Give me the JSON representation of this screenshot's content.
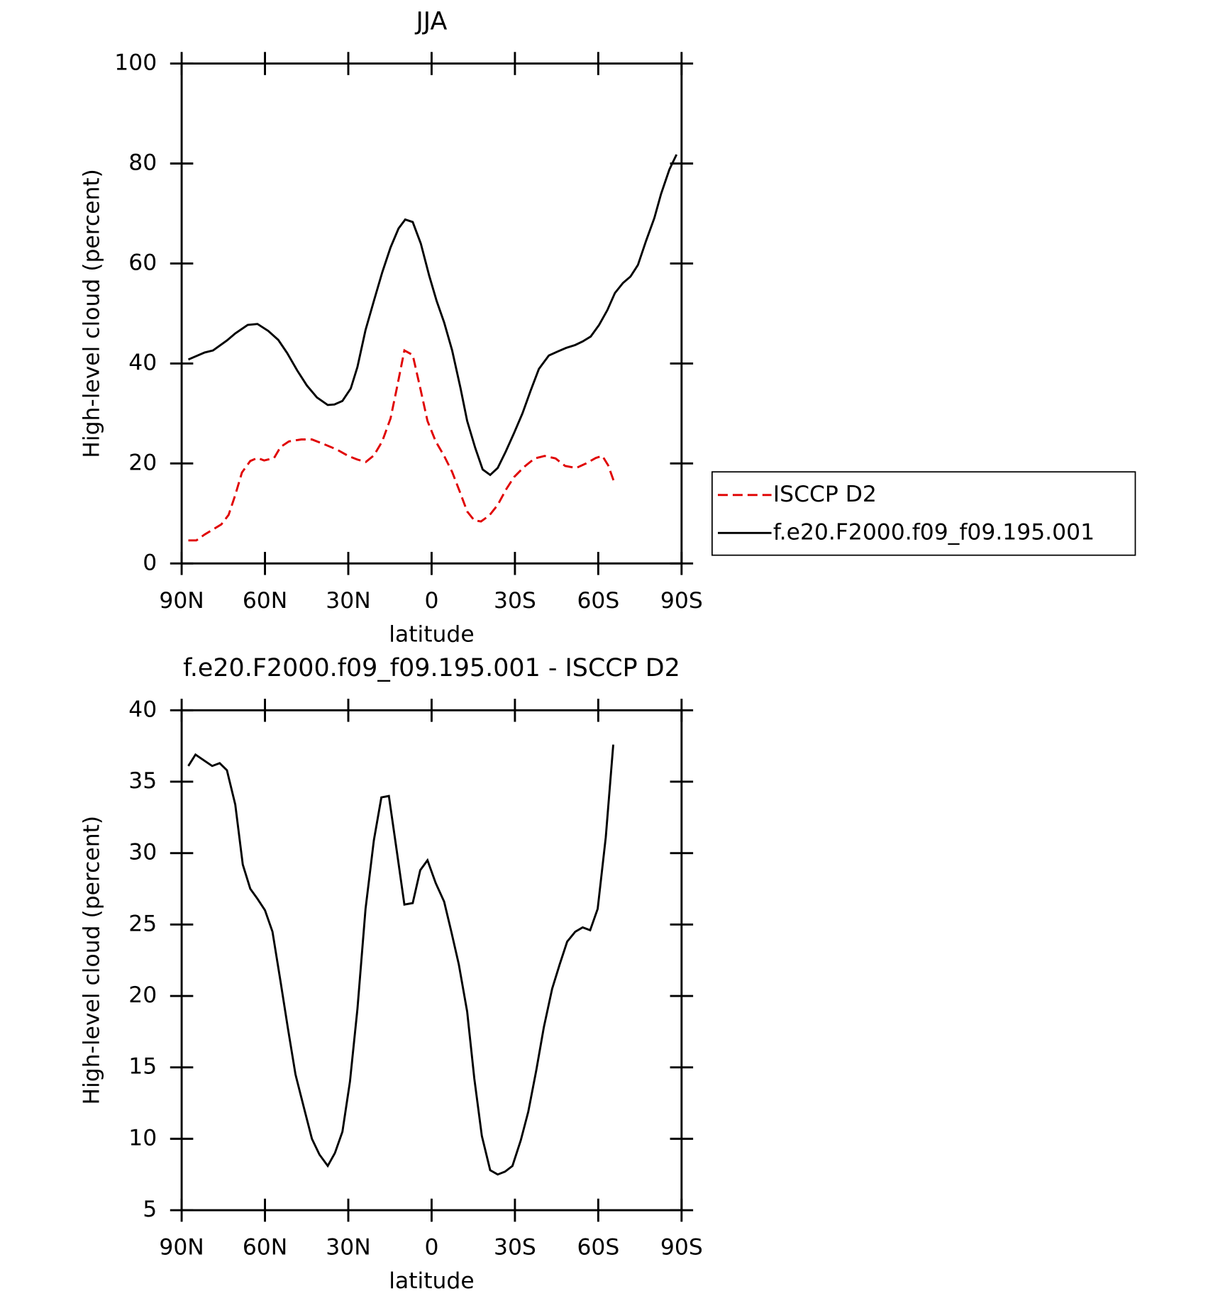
{
  "chart_data": [
    {
      "type": "line",
      "title": "JJA",
      "xlabel": "latitude",
      "ylabel": "High-level cloud (percent)",
      "xlim": [
        90,
        -90
      ],
      "xticks": [
        {
          "value": 90,
          "label": "90N"
        },
        {
          "value": 60,
          "label": "60N"
        },
        {
          "value": 30,
          "label": "30N"
        },
        0,
        {
          "value": -30,
          "label": "30S"
        },
        {
          "value": -60,
          "label": "60S"
        },
        {
          "value": -90,
          "label": "90S"
        }
      ],
      "ylim": [
        0,
        100
      ],
      "yticks": [
        0,
        20,
        40,
        60,
        80,
        100
      ],
      "legend": "right",
      "series": [
        {
          "name": "ISCCP D2",
          "color": "#e00000",
          "dashed": true,
          "x": [
            87.6,
            84.7,
            81.7,
            78.7,
            75.7,
            73.1,
            70.7,
            68.3,
            65.3,
            62.7,
            60.3,
            56.7,
            54.4,
            51.4,
            46.9,
            43.1,
            38.9,
            34.2,
            30,
            26.8,
            23.7,
            20.8,
            17.8,
            14.8,
            12.5,
            9.8,
            6.8,
            4.1,
            1.5,
            -1.5,
            -4.5,
            -7.4,
            -10.4,
            -12.8,
            -15.4,
            -17.8,
            -20.8,
            -23.8,
            -26.7,
            -29.7,
            -33.3,
            -37.1,
            -40.7,
            -44.6,
            -48.1,
            -52,
            -55.6,
            -59.1,
            -61.5,
            -63.6,
            -65.7
          ],
          "values": [
            4.6,
            4.6,
            5.8,
            6.8,
            7.8,
            9.7,
            13.7,
            18.2,
            20.5,
            21.1,
            20.6,
            21.1,
            23.3,
            24.4,
            24.8,
            24.8,
            23.9,
            22.8,
            21.5,
            20.8,
            20.3,
            21.6,
            24.4,
            29,
            35.1,
            42.6,
            41.7,
            35.1,
            28.5,
            24.4,
            21.5,
            18.3,
            14,
            10.4,
            8.6,
            8.4,
            9.6,
            11.7,
            14.7,
            17.3,
            19.3,
            21,
            21.5,
            21,
            19.5,
            19.1,
            20,
            21.1,
            21.5,
            19.6,
            16.3
          ]
        },
        {
          "name": "f.e20.F2000.f09_f09.195.001",
          "color": "#000000",
          "dashed": false,
          "x": [
            87.6,
            81.7,
            78.7,
            73.7,
            70.7,
            66.2,
            62.7,
            58.8,
            55.2,
            52,
            48.4,
            44.9,
            41.3,
            37.4,
            35,
            32.1,
            29.1,
            26.7,
            23.8,
            20.8,
            17.8,
            14.8,
            11.9,
            9.5,
            6.8,
            3.9,
            0.9,
            -1.8,
            -4.5,
            -7.4,
            -10.4,
            -12.8,
            -15.7,
            -18.4,
            -21.1,
            -23.8,
            -26.7,
            -29.7,
            -32.7,
            -35.6,
            -38.6,
            -42.2,
            -45.4,
            -48.4,
            -51.7,
            -54.4,
            -57.3,
            -60.3,
            -63.3,
            -66,
            -68.9,
            -71.6,
            -74.3,
            -77.2,
            -80.2,
            -82.6,
            -85.6,
            -88.2
          ],
          "values": [
            40.8,
            42.2,
            42.6,
            44.6,
            46,
            47.7,
            47.9,
            46.5,
            44.7,
            42.1,
            38.6,
            35.6,
            33.2,
            31.7,
            31.8,
            32.5,
            35,
            39.3,
            46.7,
            52.5,
            58.2,
            63.2,
            67,
            68.8,
            68.3,
            64,
            57.6,
            52.5,
            48.2,
            42.6,
            35.1,
            28.5,
            23.1,
            18.8,
            17.7,
            19.1,
            22.4,
            26.1,
            30,
            34.5,
            38.9,
            41.6,
            42.4,
            43.1,
            43.7,
            44.4,
            45.4,
            47.7,
            50.7,
            54.1,
            56.1,
            57.4,
            59.7,
            64.5,
            69.1,
            73.9,
            78.8,
            81.8
          ]
        }
      ]
    },
    {
      "type": "line",
      "title": "f.e20.F2000.f09_f09.195.001 - ISCCP D2",
      "xlabel": "latitude",
      "ylabel": "High-level cloud (percent)",
      "xlim": [
        90,
        -90
      ],
      "xticks": [
        {
          "value": 90,
          "label": "90N"
        },
        {
          "value": 60,
          "label": "60N"
        },
        {
          "value": 30,
          "label": "30N"
        },
        0,
        {
          "value": -30,
          "label": "30S"
        },
        {
          "value": -60,
          "label": "60S"
        },
        {
          "value": -90,
          "label": "90S"
        }
      ],
      "ylim": [
        5,
        40
      ],
      "yticks": [
        5,
        10,
        15,
        20,
        25,
        30,
        35,
        40
      ],
      "series": [
        {
          "color": "#000000",
          "dashed": false,
          "x": [
            87.6,
            85,
            82,
            79,
            76.3,
            73.7,
            70.7,
            68,
            65.3,
            62.7,
            60,
            57.3,
            54.4,
            51.7,
            49,
            46,
            43.1,
            40.4,
            37.4,
            34.8,
            32.1,
            29.4,
            26.7,
            23.8,
            20.8,
            18.1,
            15.4,
            12.5,
            9.8,
            6.8,
            4.1,
            1.5,
            -1.5,
            -4.5,
            -7.1,
            -9.8,
            -12.8,
            -15.4,
            -18.1,
            -21.1,
            -23.8,
            -26.4,
            -29.1,
            -32.1,
            -34.8,
            -37.7,
            -40.4,
            -43.4,
            -46.1,
            -48.8,
            -51.7,
            -54.4,
            -57.1,
            -59.8,
            -62.7,
            -65.4
          ],
          "values": [
            36.1,
            36.9,
            36.5,
            36.1,
            36.3,
            35.8,
            33.4,
            29.2,
            27.5,
            26.8,
            26,
            24.5,
            21,
            17.7,
            14.5,
            12.2,
            10,
            8.9,
            8.1,
            9,
            10.5,
            14,
            19.1,
            26.1,
            30.9,
            33.9,
            34,
            30.1,
            26.4,
            26.5,
            28.8,
            29.5,
            27.9,
            26.6,
            24.5,
            22.2,
            18.9,
            14.2,
            10.2,
            7.8,
            7.5,
            7.7,
            8.1,
            9.9,
            11.9,
            14.8,
            17.8,
            20.5,
            22.2,
            23.8,
            24.5,
            24.8,
            24.6,
            26.1,
            31.1,
            37.6
          ]
        }
      ]
    }
  ]
}
